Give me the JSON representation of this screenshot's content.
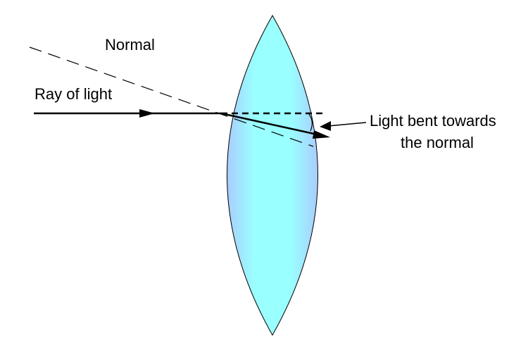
{
  "labels": {
    "normal": "Normal",
    "ray": "Ray of light",
    "bent_line1": "Light bent towards",
    "bent_line2": "the normal"
  },
  "colors": {
    "lens_center": "#99ffff",
    "lens_edge": "#aaccff",
    "stroke": "#000000"
  }
}
